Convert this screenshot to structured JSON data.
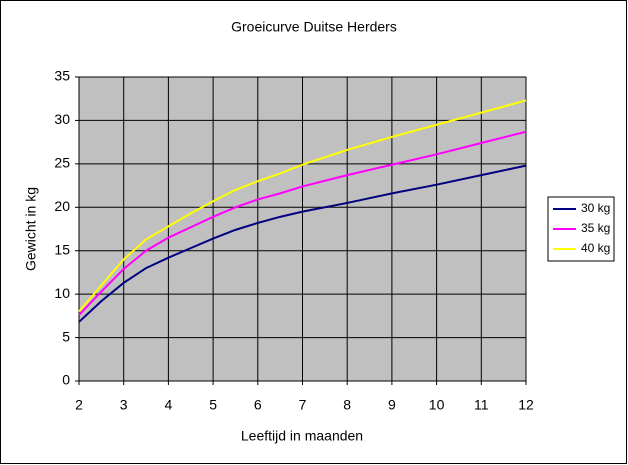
{
  "chart_data": {
    "type": "line",
    "title": "Groeicurve Duitse Herders",
    "x_label": "Leeftijd in maanden",
    "y_label": "Gewicht in kg",
    "x": [
      2,
      2.5,
      3,
      3.5,
      4,
      4.5,
      5,
      5.5,
      6,
      6.5,
      7,
      8,
      9,
      10,
      11,
      12
    ],
    "series": [
      {
        "name": "30 kg",
        "color": "#000080",
        "values": [
          6.8,
          9.2,
          11.3,
          13,
          14.2,
          15.3,
          16.4,
          17.4,
          18.2,
          18.9,
          19.5,
          20.5,
          21.6,
          22.6,
          23.7,
          24.8
        ]
      },
      {
        "name": "35 kg",
        "color": "#ff00ff",
        "values": [
          7.6,
          10.3,
          12.9,
          15,
          16.5,
          17.7,
          18.9,
          20,
          20.9,
          21.6,
          22.4,
          23.7,
          24.9,
          26.1,
          27.4,
          28.7
        ]
      },
      {
        "name": "40 kg",
        "color": "#ffff00",
        "values": [
          8,
          11,
          14,
          16.3,
          17.8,
          19.3,
          20.7,
          22,
          23,
          23.9,
          24.9,
          26.6,
          28.1,
          29.5,
          30.9,
          32.3
        ]
      }
    ],
    "xlim": [
      2,
      12
    ],
    "xticks": [
      2,
      3,
      4,
      5,
      6,
      7,
      8,
      9,
      10,
      11,
      12
    ],
    "ylim": [
      0,
      35
    ],
    "yticks": [
      0,
      5,
      10,
      15,
      20,
      25,
      30,
      35
    ],
    "grid": true,
    "legend": "right",
    "plot_background": "#c0c0c0"
  }
}
